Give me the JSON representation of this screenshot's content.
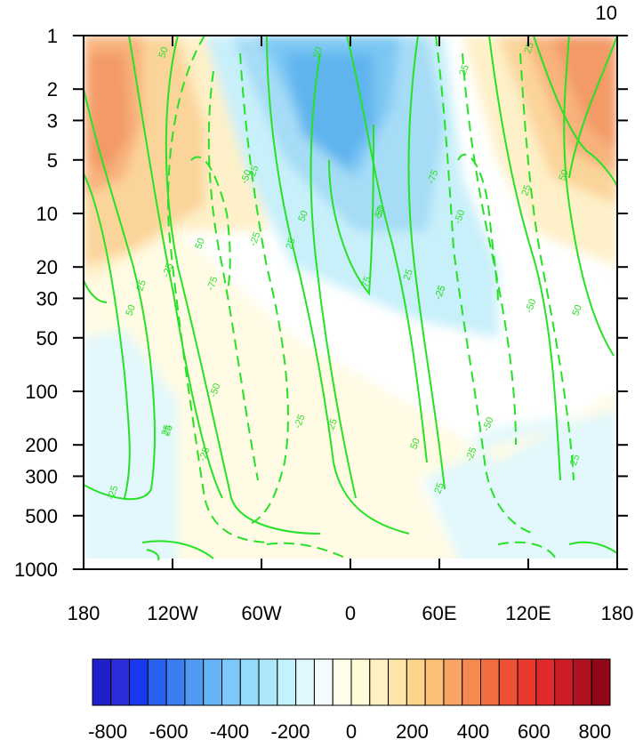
{
  "panel_label": "10",
  "chart_data": {
    "type": "heatmap",
    "title": "",
    "xlabel": "",
    "ylabel": "",
    "x_axis": {
      "ticks": [
        -180,
        -120,
        -60,
        0,
        60,
        120,
        180
      ],
      "tick_labels": [
        "180",
        "120W",
        "60W",
        "0",
        "60E",
        "120E",
        "180"
      ],
      "range": [
        -180,
        180
      ]
    },
    "y_axis": {
      "scale": "log",
      "reversed": true,
      "ticks": [
        1,
        2,
        3,
        5,
        10,
        20,
        30,
        50,
        100,
        200,
        300,
        500,
        1000
      ],
      "tick_labels": [
        "1",
        "2",
        "3",
        "5",
        "10",
        "20",
        "30",
        "50",
        "100",
        "200",
        "300",
        "500",
        "1000"
      ],
      "range": [
        1,
        1000
      ]
    },
    "colorbar": {
      "orientation": "horizontal",
      "tick_values": [
        -800,
        -600,
        -400,
        -200,
        0,
        200,
        400,
        600,
        800
      ],
      "tick_labels": [
        "-800",
        "-600",
        "-400",
        "-200",
        "0",
        "200",
        "400",
        "600",
        "800"
      ],
      "colors": [
        "#2020c8",
        "#2c2cdc",
        "#1a38ee",
        "#2860f0",
        "#3c7ef2",
        "#509af4",
        "#64b4f6",
        "#7cc8f8",
        "#94dafa",
        "#ace8fa",
        "#c4f2fc",
        "#def8fe",
        "#f2fcfe",
        "#fefeea",
        "#fefad6",
        "#fef0c0",
        "#fee4a6",
        "#fcd48c",
        "#fbbf78",
        "#f8a464",
        "#f58a50",
        "#f26e40",
        "#ee5236",
        "#ea3a30",
        "#e22a2c",
        "#cc1c26",
        "#b01220",
        "#900818"
      ],
      "levels": [
        -850,
        -790,
        -730,
        -670,
        -610,
        -550,
        -490,
        -430,
        -370,
        -310,
        -250,
        -190,
        -130,
        -70,
        0,
        70,
        130,
        190,
        250,
        310,
        370,
        430,
        490,
        550,
        610,
        670,
        730,
        790,
        850
      ]
    },
    "shading_regions": [
      {
        "value": 350,
        "description": "positive max upper levels near 180"
      },
      {
        "value": -300,
        "description": "negative min upper levels near 0"
      },
      {
        "value": 300,
        "description": "positive max upper levels near 150E"
      }
    ],
    "contour_labels": [
      "50",
      "50",
      "25",
      "-50",
      "-25",
      "-25",
      "-75",
      "25",
      "50",
      "-50",
      "25",
      "-25",
      "-25",
      "50",
      "25",
      "-50",
      "75",
      "25",
      "-25",
      "-75",
      "-50",
      "50",
      "25",
      "-50",
      "-25",
      "25",
      "50",
      "-25",
      "50",
      "25",
      "-50",
      "-25",
      "25",
      "-25",
      "50",
      "25",
      "50",
      "-25"
    ]
  }
}
